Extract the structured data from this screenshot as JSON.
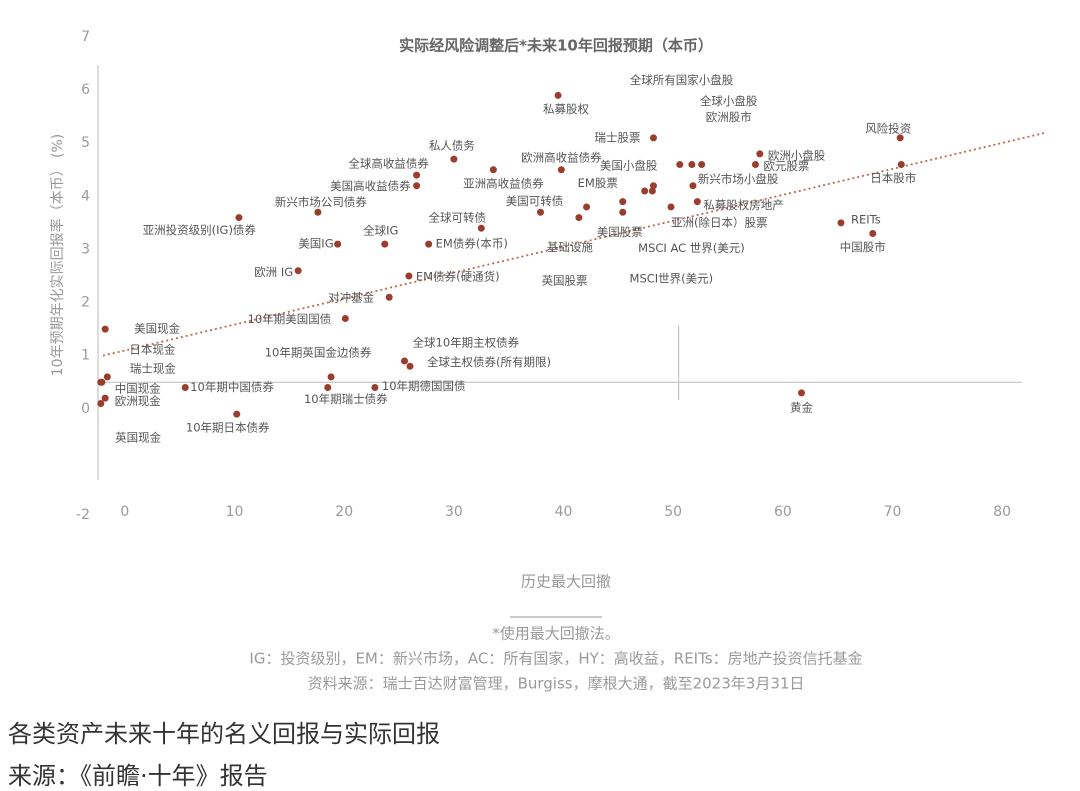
{
  "chart_data": {
    "type": "scatter",
    "title": "实际经风险调整后*未来10年回报预期（本币）",
    "xlabel": "历史最大回撤",
    "ylabel": "10年预期年化实际回报率（本币） (%)",
    "xlim": [
      -3,
      85
    ],
    "xticks": [
      0,
      10,
      20,
      30,
      40,
      50,
      60,
      70,
      80
    ],
    "ylim": [
      -2,
      7
    ],
    "yticks": [
      -2,
      0,
      1,
      2,
      3,
      4,
      5,
      6,
      7
    ],
    "color": "#9b3d2d",
    "labels": [
      "私募股权",
      "全球所有国家小盘股",
      "全球小盘股",
      "欧洲股市",
      "瑞士股票",
      "风险投资",
      "日本股市",
      "欧洲小盘股",
      "欧元股票",
      "新兴市场小盘股",
      "私募股权房地产",
      "美国小盘股",
      "MSCI AC 世界(美元)",
      "MSCI世界(美元)",
      "亚洲(除日本）股票",
      "EM股票",
      "美国股票",
      "基础设施",
      "英国股票",
      "美国可转债",
      "欧洲高收益债券",
      "亚洲高收益债券",
      "私人债务",
      "全球高收益债券",
      "美国高收益债券",
      "全球可转债",
      "EM债券(本币)",
      "新兴市场公司债券",
      "亚洲投资级别(IG)债券",
      "美国IG",
      "全球IG",
      "欧洲 IG",
      "EM债券(硬通货)",
      "对冲基金",
      "10年期美国国债",
      "10年期英国金边债券",
      "全球10年期主权债券",
      "全球主权债券(所有期限)",
      "10年期德国国债",
      "10年期瑞士债券",
      "10年期中国债券",
      "10年期日本债券",
      "黄金",
      "REITs",
      "中国股市",
      "美国现金",
      "日本现金",
      "瑞士现金",
      "中国现金",
      "欧洲现金",
      "英国现金"
    ],
    "x": [
      39.5,
      50.6,
      51.7,
      52.6,
      48.2,
      70.7,
      70.8,
      57.9,
      57.5,
      51.8,
      52.2,
      47.4,
      48.2,
      48.1,
      49.8,
      45.4,
      45.4,
      41.4,
      42.1,
      37.9,
      39.8,
      33.6,
      30,
      26.6,
      26.6,
      32.5,
      27.7,
      17.6,
      10.4,
      19.4,
      23.7,
      15.8,
      25.9,
      24.1,
      20.1,
      18.8,
      25.5,
      26.0,
      22.8,
      18.5,
      5.5,
      10.2,
      61.7,
      65.3,
      68.2,
      -1.8,
      -1.6,
      -2.1,
      -2.2,
      -2.2,
      -1.8
    ],
    "values": [
      5.9,
      4.6,
      4.6,
      4.6,
      5.1,
      5.1,
      4.6,
      4.8,
      4.6,
      4.2,
      3.9,
      4.1,
      4.2,
      4.1,
      3.8,
      3.9,
      3.7,
      3.6,
      3.8,
      3.7,
      4.5,
      4.5,
      4.7,
      4.4,
      4.2,
      3.4,
      3.1,
      3.7,
      3.6,
      3.1,
      3.1,
      2.6,
      2.5,
      2.1,
      1.7,
      0.6,
      0.9,
      0.8,
      0.4,
      0.4,
      0.4,
      -0.1,
      0.3,
      3.5,
      3.3,
      1.5,
      0.6,
      0.5,
      0.5,
      0.1,
      0.2
    ],
    "trendline": {
      "x": [
        -2,
        84
      ],
      "y": [
        1.0,
        5.2
      ],
      "color": "#c0664f"
    },
    "reference_lines": {
      "x": 50.5,
      "y": 0.5
    },
    "notes": [
      "*使用最大回撤法。",
      "IG：投资级别，EM：新兴市场，AC：所有国家，HY：高收益，REITs：房地产投资信托基金",
      "资料来源：瑞士百达财富管理，Burgiss，摩根大通，截至2023年3月31日"
    ]
  },
  "caption": {
    "title": "各类资产未来十年的名义回报与实际回报",
    "source": "来源：《前瞻·十年》报告"
  }
}
